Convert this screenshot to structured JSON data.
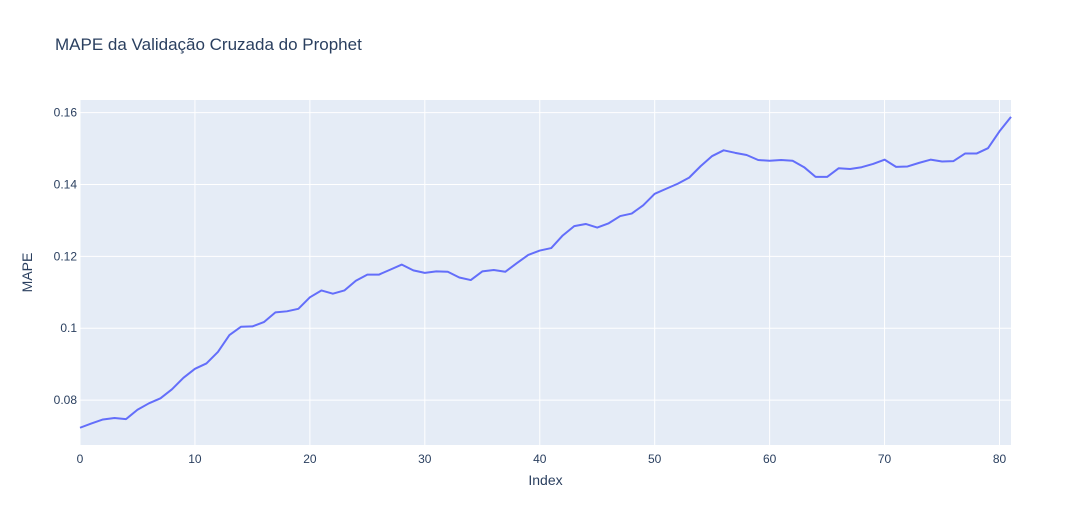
{
  "chart_data": {
    "type": "line",
    "title": "MAPE da Validação Cruzada do Prophet",
    "xlabel": "Index",
    "ylabel": "MAPE",
    "xlim": [
      0,
      81
    ],
    "ylim": [
      0.0675,
      0.1635
    ],
    "xticks": [
      0,
      10,
      20,
      30,
      40,
      50,
      60,
      70,
      80
    ],
    "xtick_labels": [
      "0",
      "10",
      "20",
      "30",
      "40",
      "50",
      "60",
      "70",
      "80"
    ],
    "yticks": [
      0.08,
      0.1,
      0.12,
      0.14,
      0.16
    ],
    "ytick_labels": [
      "0.08",
      "0.1",
      "0.12",
      "0.14",
      "0.16"
    ],
    "grid": true,
    "colors": {
      "line": "#636efa",
      "plot_bg": "#e5ecf6",
      "grid": "#ffffff",
      "text": "#2a3f5f"
    },
    "series": [
      {
        "x": [
          0,
          1,
          2,
          3,
          4,
          5,
          6,
          7,
          8,
          9,
          10,
          11,
          12,
          13,
          14,
          15,
          16,
          17,
          18,
          19,
          20,
          21,
          22,
          23,
          24,
          25,
          26,
          27,
          28,
          29,
          30,
          31,
          32,
          33,
          34,
          35,
          36,
          37,
          38,
          39,
          40,
          41,
          42,
          43,
          44,
          45,
          46,
          47,
          48,
          49,
          50,
          51,
          52,
          53,
          54,
          55,
          56,
          57,
          58,
          59,
          60,
          61,
          62,
          63,
          64,
          65,
          66,
          67,
          68,
          69,
          70,
          71,
          72,
          73,
          74,
          75,
          76,
          77,
          78,
          79,
          80,
          81
        ],
        "values": [
          0.0723,
          0.0735,
          0.0746,
          0.075,
          0.0747,
          0.0773,
          0.0791,
          0.0805,
          0.083,
          0.0862,
          0.0887,
          0.0902,
          0.0934,
          0.0981,
          0.1004,
          0.1005,
          0.1017,
          0.1044,
          0.1047,
          0.1054,
          0.1086,
          0.1105,
          0.1096,
          0.1105,
          0.1132,
          0.1149,
          0.1149,
          0.1163,
          0.1177,
          0.1161,
          0.1154,
          0.1158,
          0.1157,
          0.1141,
          0.1134,
          0.1158,
          0.1162,
          0.1157,
          0.1181,
          0.1204,
          0.1216,
          0.1223,
          0.1258,
          0.1284,
          0.129,
          0.128,
          0.1292,
          0.1312,
          0.1319,
          0.1342,
          0.1374,
          0.1388,
          0.1402,
          0.1419,
          0.1451,
          0.1479,
          0.1495,
          0.1488,
          0.1482,
          0.1468,
          0.1466,
          0.1468,
          0.1466,
          0.1448,
          0.1421,
          0.1421,
          0.1445,
          0.1443,
          0.1448,
          0.1457,
          0.1469,
          0.1449,
          0.145,
          0.146,
          0.1469,
          0.1464,
          0.1465,
          0.1486,
          0.1486,
          0.1501,
          0.1548,
          0.1588
        ]
      }
    ]
  }
}
